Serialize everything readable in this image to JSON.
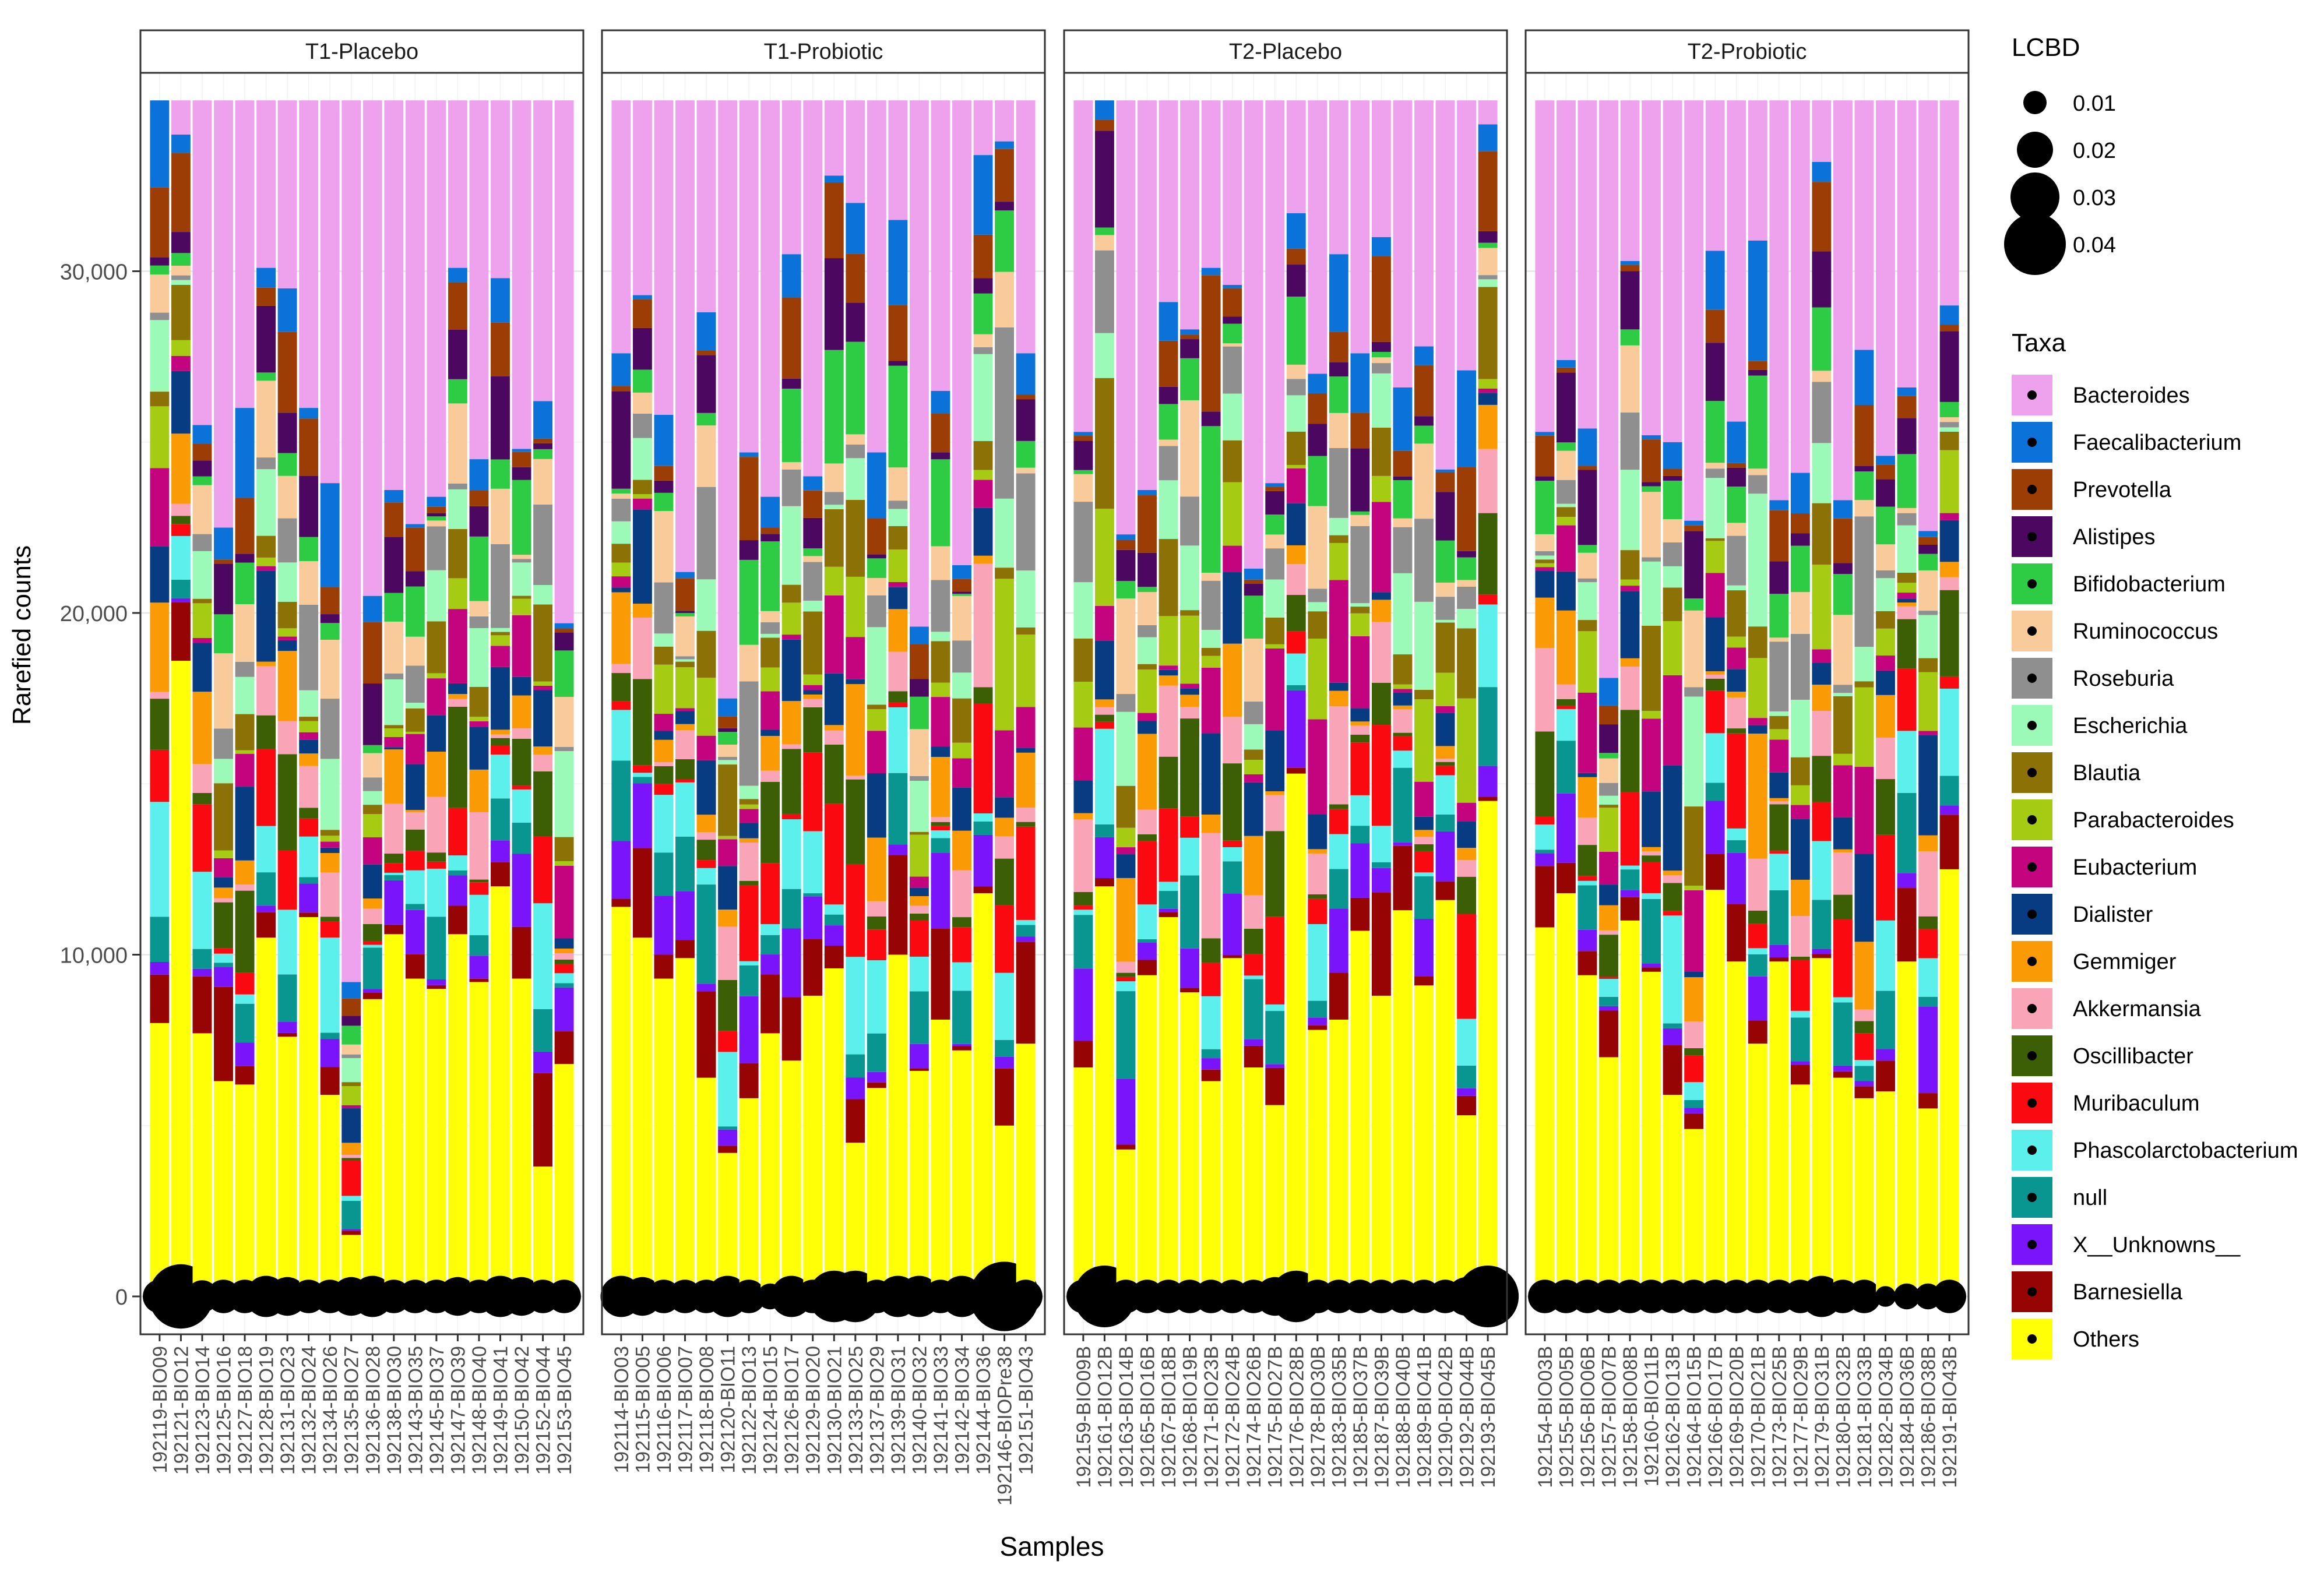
{
  "chart_data": {
    "type": "bar",
    "stacked": true,
    "xlabel": "Samples",
    "ylabel": "Rarefied counts",
    "ylim": [
      0,
      35000
    ],
    "yticks": [
      0,
      10000,
      20000,
      30000
    ],
    "ytick_labels": [
      "0",
      "10,000",
      "20,000",
      "30,000"
    ],
    "grid": true,
    "legend_placement": "right",
    "lcbd_legend": {
      "title": "LCBD",
      "entries": [
        0.01,
        0.02,
        0.03,
        0.04
      ],
      "labels": [
        "0.01",
        "0.02",
        "0.03",
        "0.04"
      ]
    },
    "taxa_legend_title": "Taxa",
    "taxa": [
      {
        "name": "Bacteroides",
        "color": "#EEA2EE"
      },
      {
        "name": "Faecalibacterium",
        "color": "#0A72D8"
      },
      {
        "name": "Prevotella",
        "color": "#9C3D06"
      },
      {
        "name": "Alistipes",
        "color": "#4C0760"
      },
      {
        "name": "Bifidobacterium",
        "color": "#2ECB45"
      },
      {
        "name": "Ruminococcus",
        "color": "#FACB9A"
      },
      {
        "name": "Roseburia",
        "color": "#8F8F8F"
      },
      {
        "name": "Escherichia",
        "color": "#9CFAB8"
      },
      {
        "name": "Blautia",
        "color": "#8C7107"
      },
      {
        "name": "Parabacteroides",
        "color": "#A5CB12"
      },
      {
        "name": "Eubacterium",
        "color": "#C4047F"
      },
      {
        "name": "Dialister",
        "color": "#083C82"
      },
      {
        "name": "Gemmiger",
        "color": "#FA9A04"
      },
      {
        "name": "Akkermansia",
        "color": "#FAA5B7"
      },
      {
        "name": "Oscillibacter",
        "color": "#3C5E04"
      },
      {
        "name": "Muribaculum",
        "color": "#FA0A10"
      },
      {
        "name": "Phascolarctobacterium",
        "color": "#5CF0EC"
      },
      {
        "name": "null",
        "color": "#0A9690"
      },
      {
        "name": "X__Unknowns__",
        "color": "#7A14FA"
      },
      {
        "name": "Barnesiella",
        "color": "#960404"
      },
      {
        "name": "Others",
        "color": "#FFFF05"
      }
    ],
    "panels": [
      {
        "title": "T1-Placebo",
        "samples": [
          "192119-BIO09",
          "192121-BIO12",
          "192123-BIO14",
          "192125-BIO16",
          "192127-BIO18",
          "192128-BIO19",
          "192131-BIO23",
          "192132-BIO24",
          "192134-BIO26",
          "192135-BIO27",
          "192136-BIO28",
          "192138-BIO30",
          "192143-BIO35",
          "192145-BIO37",
          "192147-BIO39",
          "192148-BIO40",
          "192149-BIO41",
          "192150-BIO42",
          "192152-BIO44",
          "192153-BIO45"
        ],
        "totals": [
          35000,
          34000,
          25500,
          22500,
          26000,
          30100,
          29500,
          26000,
          23800,
          9200,
          20500,
          23600,
          22600,
          23400,
          30100,
          24500,
          29800,
          24800,
          26200,
          19700
        ],
        "others": [
          8000,
          18600,
          7700,
          6300,
          6200,
          10500,
          7600,
          11100,
          5900,
          1800,
          8700,
          10600,
          9300,
          9000,
          10600,
          9200,
          12000,
          9300,
          3800,
          6800
        ],
        "lcbd": [
          0.018,
          0.042,
          0.017,
          0.018,
          0.018,
          0.024,
          0.022,
          0.018,
          0.018,
          0.022,
          0.024,
          0.018,
          0.018,
          0.018,
          0.022,
          0.018,
          0.024,
          0.022,
          0.018,
          0.018
        ]
      },
      {
        "title": "T1-Probiotic",
        "samples": [
          "192114-BIO03",
          "192115-BIO05",
          "192116-BIO06",
          "192117-BIO07",
          "192118-BIO08",
          "192120-BIO11",
          "192122-BIO13",
          "192124-BIO15",
          "192126-BIO17",
          "192129-BIO20",
          "192130-BIO21",
          "192133-BIO25",
          "192137-BIO29",
          "192139-BIO31",
          "192140-BIO32",
          "192141-BIO33",
          "192142-BIO34",
          "192144-BIO36",
          "192146-BIOPre38",
          "192151-BIO43"
        ],
        "totals": [
          27600,
          29300,
          25800,
          21200,
          28800,
          17500,
          24700,
          23400,
          30500,
          24000,
          32800,
          32000,
          24700,
          31500,
          19600,
          26500,
          21400,
          33400,
          33800,
          27600
        ],
        "others": [
          11400,
          10500,
          9300,
          9900,
          6400,
          4200,
          5800,
          7700,
          6900,
          8800,
          9600,
          4500,
          6100,
          10000,
          6600,
          8100,
          7200,
          11800,
          5000,
          7400
        ],
        "lcbd": [
          0.024,
          0.022,
          0.018,
          0.018,
          0.018,
          0.024,
          0.018,
          0.012,
          0.024,
          0.018,
          0.032,
          0.032,
          0.018,
          0.024,
          0.024,
          0.018,
          0.024,
          0.022,
          0.046,
          0.018
        ]
      },
      {
        "title": "T2-Placebo",
        "samples": [
          "192159-BIO09B",
          "192161-BIO12B",
          "192163-BIO14B",
          "192165-BIO16B",
          "192167-BIO18B",
          "192168-BIO19B",
          "192171-BIO23B",
          "192172-BIO24B",
          "192174-BIO26B",
          "192175-BIO27B",
          "192176-BIO28B",
          "192178-BIO30B",
          "192183-BIO35B",
          "192185-BIO37B",
          "192187-BIO39B",
          "192188-BIO40B",
          "192189-BIO41B",
          "192190-BIO42B",
          "192192-BIO44B",
          "192193-BIO45B"
        ],
        "totals": [
          25300,
          35000,
          22300,
          23600,
          29100,
          28300,
          30100,
          29600,
          21300,
          23800,
          31700,
          27000,
          30500,
          27600,
          31000,
          26600,
          27800,
          24200,
          27100,
          34300
        ],
        "others": [
          6700,
          12000,
          4300,
          9400,
          11100,
          8900,
          6300,
          9900,
          6700,
          5600,
          15300,
          7800,
          8100,
          10700,
          8800,
          11300,
          9100,
          11600,
          5300,
          14500
        ],
        "lcbd": [
          0.018,
          0.04,
          0.018,
          0.018,
          0.018,
          0.018,
          0.018,
          0.018,
          0.018,
          0.022,
          0.032,
          0.018,
          0.018,
          0.018,
          0.018,
          0.018,
          0.018,
          0.018,
          0.022,
          0.04
        ]
      },
      {
        "title": "T2-Probiotic",
        "samples": [
          "192154-BIO03B",
          "192155-BIO05B",
          "192156-BIO06B",
          "192157-BIO07B",
          "192158-BIO08B",
          "192160-BIO11B",
          "192162-BIO13B",
          "192164-BIO15B",
          "192166-BIO17B",
          "192169-BIO20B",
          "192170-BIO21B",
          "192173-BIO25B",
          "192177-BIO29B",
          "192179-BIO31B",
          "192180-BIO32B",
          "192181-BIO33B",
          "192182-BIO34B",
          "192184-BIO36B",
          "192186-BIO38B",
          "192191-BIO43B"
        ],
        "totals": [
          25300,
          27400,
          25400,
          18100,
          30300,
          25200,
          25000,
          22700,
          30600,
          25600,
          30900,
          23300,
          24100,
          33200,
          23300,
          27700,
          24600,
          26600,
          22400,
          29000
        ],
        "others": [
          10800,
          11800,
          9400,
          7000,
          11000,
          9500,
          5900,
          4900,
          11900,
          9800,
          7400,
          9800,
          6200,
          9900,
          6400,
          5800,
          6000,
          9800,
          5500,
          12500
        ],
        "lcbd": [
          0.018,
          0.018,
          0.018,
          0.018,
          0.018,
          0.018,
          0.018,
          0.018,
          0.018,
          0.018,
          0.018,
          0.018,
          0.018,
          0.024,
          0.018,
          0.018,
          0.008,
          0.012,
          0.012,
          0.018
        ]
      }
    ]
  }
}
